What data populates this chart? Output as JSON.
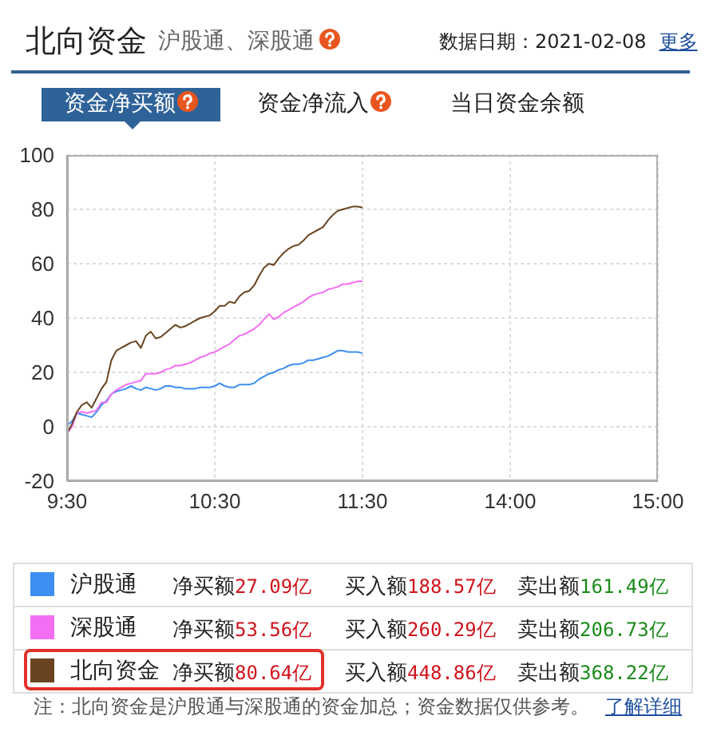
{
  "chart_data": {
    "type": "line",
    "title": "北向资金",
    "subtitle": "沪股通、深股通",
    "annotations": [
      "数据日期：2021-02-08",
      "更多",
      "资金净买额",
      "资金净流入",
      "当日资金余额",
      "净买额27.09亿",
      "买入额188.57亿",
      "卖出额161.49亿",
      "净买额53.56亿",
      "买入额260.29亿",
      "卖出额206.73亿",
      "净买额80.64亿",
      "买入额448.86亿",
      "卖出额368.22亿",
      "注：北向资金是沪股通与深股通的资金加总；资金数据仅供参考。",
      "了解详细"
    ],
    "categories": [
      "9:30",
      null,
      null,
      null,
      null,
      null,
      null,
      null,
      null,
      null,
      null,
      null,
      null,
      null,
      null,
      null,
      null,
      null,
      null,
      null,
      null,
      null,
      null,
      null,
      null,
      null,
      null,
      null,
      null,
      null,
      "10:30",
      null,
      null,
      null,
      null,
      null,
      null,
      null,
      null,
      null,
      null,
      null,
      null,
      null,
      null,
      null,
      null,
      null,
      null,
      null,
      null,
      null,
      null,
      null,
      null,
      null,
      null,
      null,
      null,
      null,
      "11:30",
      null,
      null,
      null,
      null,
      null,
      null,
      null,
      null,
      null,
      null,
      null,
      null,
      null,
      null,
      null,
      null,
      null,
      null,
      null,
      null,
      null,
      null,
      null,
      null,
      null,
      null,
      null,
      null,
      null,
      "14:00",
      null,
      null,
      null,
      null,
      null,
      null,
      null,
      null,
      null,
      null,
      null,
      null,
      null,
      null,
      null,
      null,
      null,
      null,
      null,
      null,
      null,
      null,
      null,
      null,
      null,
      null,
      null,
      null,
      null,
      "15:00"
    ],
    "series": [
      {
        "name": "沪股通",
        "color": "#3d8ef0",
        "values": [
          0.5,
          2,
          5,
          4.5,
          4,
          3.5,
          5.5,
          8,
          9.5,
          12,
          13,
          13.5,
          14,
          15,
          14,
          13.5,
          14.5,
          14,
          13.5,
          14,
          15,
          15,
          14.5,
          14.5,
          14,
          14,
          14,
          14.5,
          14.5,
          14.5,
          15,
          16,
          15,
          14.5,
          14.5,
          15.5,
          15.5,
          15.5,
          16,
          17.5,
          18.5,
          19.5,
          20,
          21,
          21.5,
          22.5,
          23,
          23,
          23.5,
          24.5,
          24.5,
          25,
          25.5,
          26,
          27,
          28,
          28,
          27.5,
          27.5,
          27.5,
          27.09,
          null,
          null,
          null,
          null,
          null,
          null,
          null,
          null,
          null,
          null,
          null,
          null,
          null,
          null,
          null,
          null,
          null,
          null,
          null,
          null,
          null,
          null,
          null,
          null,
          null,
          null,
          null,
          null,
          null,
          null,
          null,
          null,
          null,
          null,
          null,
          null,
          null,
          null,
          null,
          null,
          null,
          null,
          null,
          null,
          null,
          null,
          null,
          null,
          null,
          null,
          null,
          null,
          null,
          null,
          null,
          null,
          null,
          null,
          null,
          null
        ]
      },
      {
        "name": "深股通",
        "color": "#f36ef3",
        "values": [
          -2.5,
          0,
          5,
          5.5,
          5,
          5.5,
          6,
          9,
          9,
          12,
          13.5,
          14.5,
          15.5,
          16,
          16.5,
          17,
          19.5,
          19.5,
          19.5,
          20,
          21,
          21.5,
          22.5,
          22.5,
          23,
          23.5,
          24.5,
          25.5,
          26,
          27,
          27.5,
          28.5,
          29.5,
          30.5,
          32,
          33.5,
          34,
          35,
          36,
          37.5,
          39.5,
          41.5,
          39.5,
          40.5,
          42,
          43,
          44,
          45,
          46,
          47.5,
          48.5,
          49,
          49.5,
          50.5,
          51,
          51.5,
          52.5,
          52.5,
          53,
          53.5,
          53.56,
          null,
          null,
          null,
          null,
          null,
          null,
          null,
          null,
          null,
          null,
          null,
          null,
          null,
          null,
          null,
          null,
          null,
          null,
          null,
          null,
          null,
          null,
          null,
          null,
          null,
          null,
          null,
          null,
          null,
          null,
          null,
          null,
          null,
          null,
          null,
          null,
          null,
          null,
          null,
          null,
          null,
          null,
          null,
          null,
          null,
          null,
          null,
          null,
          null,
          null,
          null,
          null,
          null,
          null,
          null,
          null,
          null,
          null,
          null,
          null
        ]
      },
      {
        "name": "北向资金",
        "color": "#6a4420",
        "values": [
          -2.5,
          1,
          5.5,
          8,
          9,
          7,
          10.5,
          14,
          16.5,
          24.5,
          28,
          29,
          30,
          31,
          31.5,
          29,
          33.5,
          35,
          32.5,
          33,
          34.5,
          36,
          37.5,
          36.5,
          37,
          38,
          39,
          40,
          40.5,
          41,
          42.5,
          44.5,
          44.5,
          46,
          45.5,
          48,
          49.5,
          50,
          52,
          55.5,
          58.5,
          60,
          59.5,
          62,
          64,
          65.5,
          66.5,
          67,
          68.5,
          70.5,
          71.5,
          72.5,
          73.5,
          76,
          78,
          79.5,
          80,
          80.5,
          81,
          81,
          80.64,
          null,
          null,
          null,
          null,
          null,
          null,
          null,
          null,
          null,
          null,
          null,
          null,
          null,
          null,
          null,
          null,
          null,
          null,
          null,
          null,
          null,
          null,
          null,
          null,
          null,
          null,
          null,
          null,
          null,
          null,
          null,
          null,
          null,
          null,
          null,
          null,
          null,
          null,
          null,
          null,
          null,
          null,
          null,
          null,
          null,
          null,
          null,
          null,
          null,
          null,
          null,
          null,
          null,
          null,
          null,
          null,
          null,
          null,
          null,
          null
        ]
      }
    ],
    "ylim": [
      -20,
      100
    ],
    "yticks": [
      -20,
      0,
      20,
      40,
      60,
      80,
      100
    ],
    "grid": true,
    "legend": "bottom"
  }
}
